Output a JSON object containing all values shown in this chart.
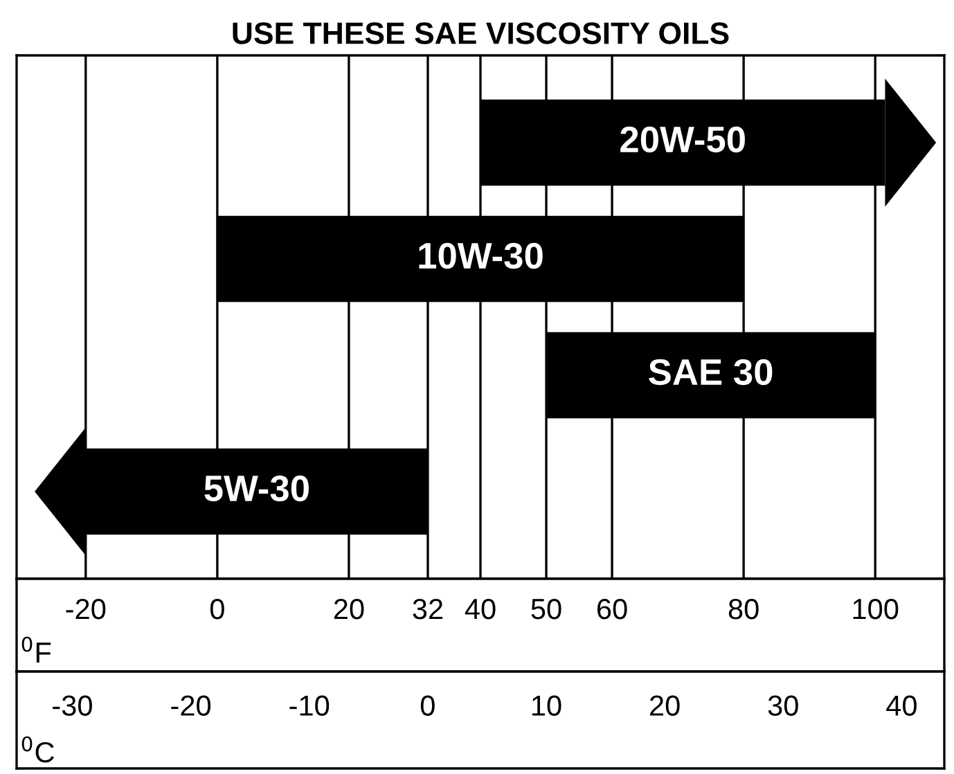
{
  "chart_data": {
    "type": "bar",
    "orientation": "horizontal",
    "title": "USE THESE SAE VISCOSITY OILS",
    "categories": [
      "20W-50",
      "10W-30",
      "SAE 30",
      "5W-30"
    ],
    "base": [
      40,
      0,
      50,
      -20
    ],
    "values": [
      61.5,
      80,
      50,
      52
    ],
    "color": "#000000",
    "xlim": [
      -30.5,
      110.5
    ],
    "xticks": [
      -20,
      0,
      20,
      32,
      40,
      50,
      60,
      80,
      100
    ],
    "xlabel": "$^{0}$F",
    "x2lim": [
      -34.7,
      43.6
    ],
    "x2ticks": [
      -30,
      -20,
      -10,
      0,
      10,
      20,
      30,
      40
    ],
    "x2label": "$^{0}$C",
    "grid": "x"
  }
}
